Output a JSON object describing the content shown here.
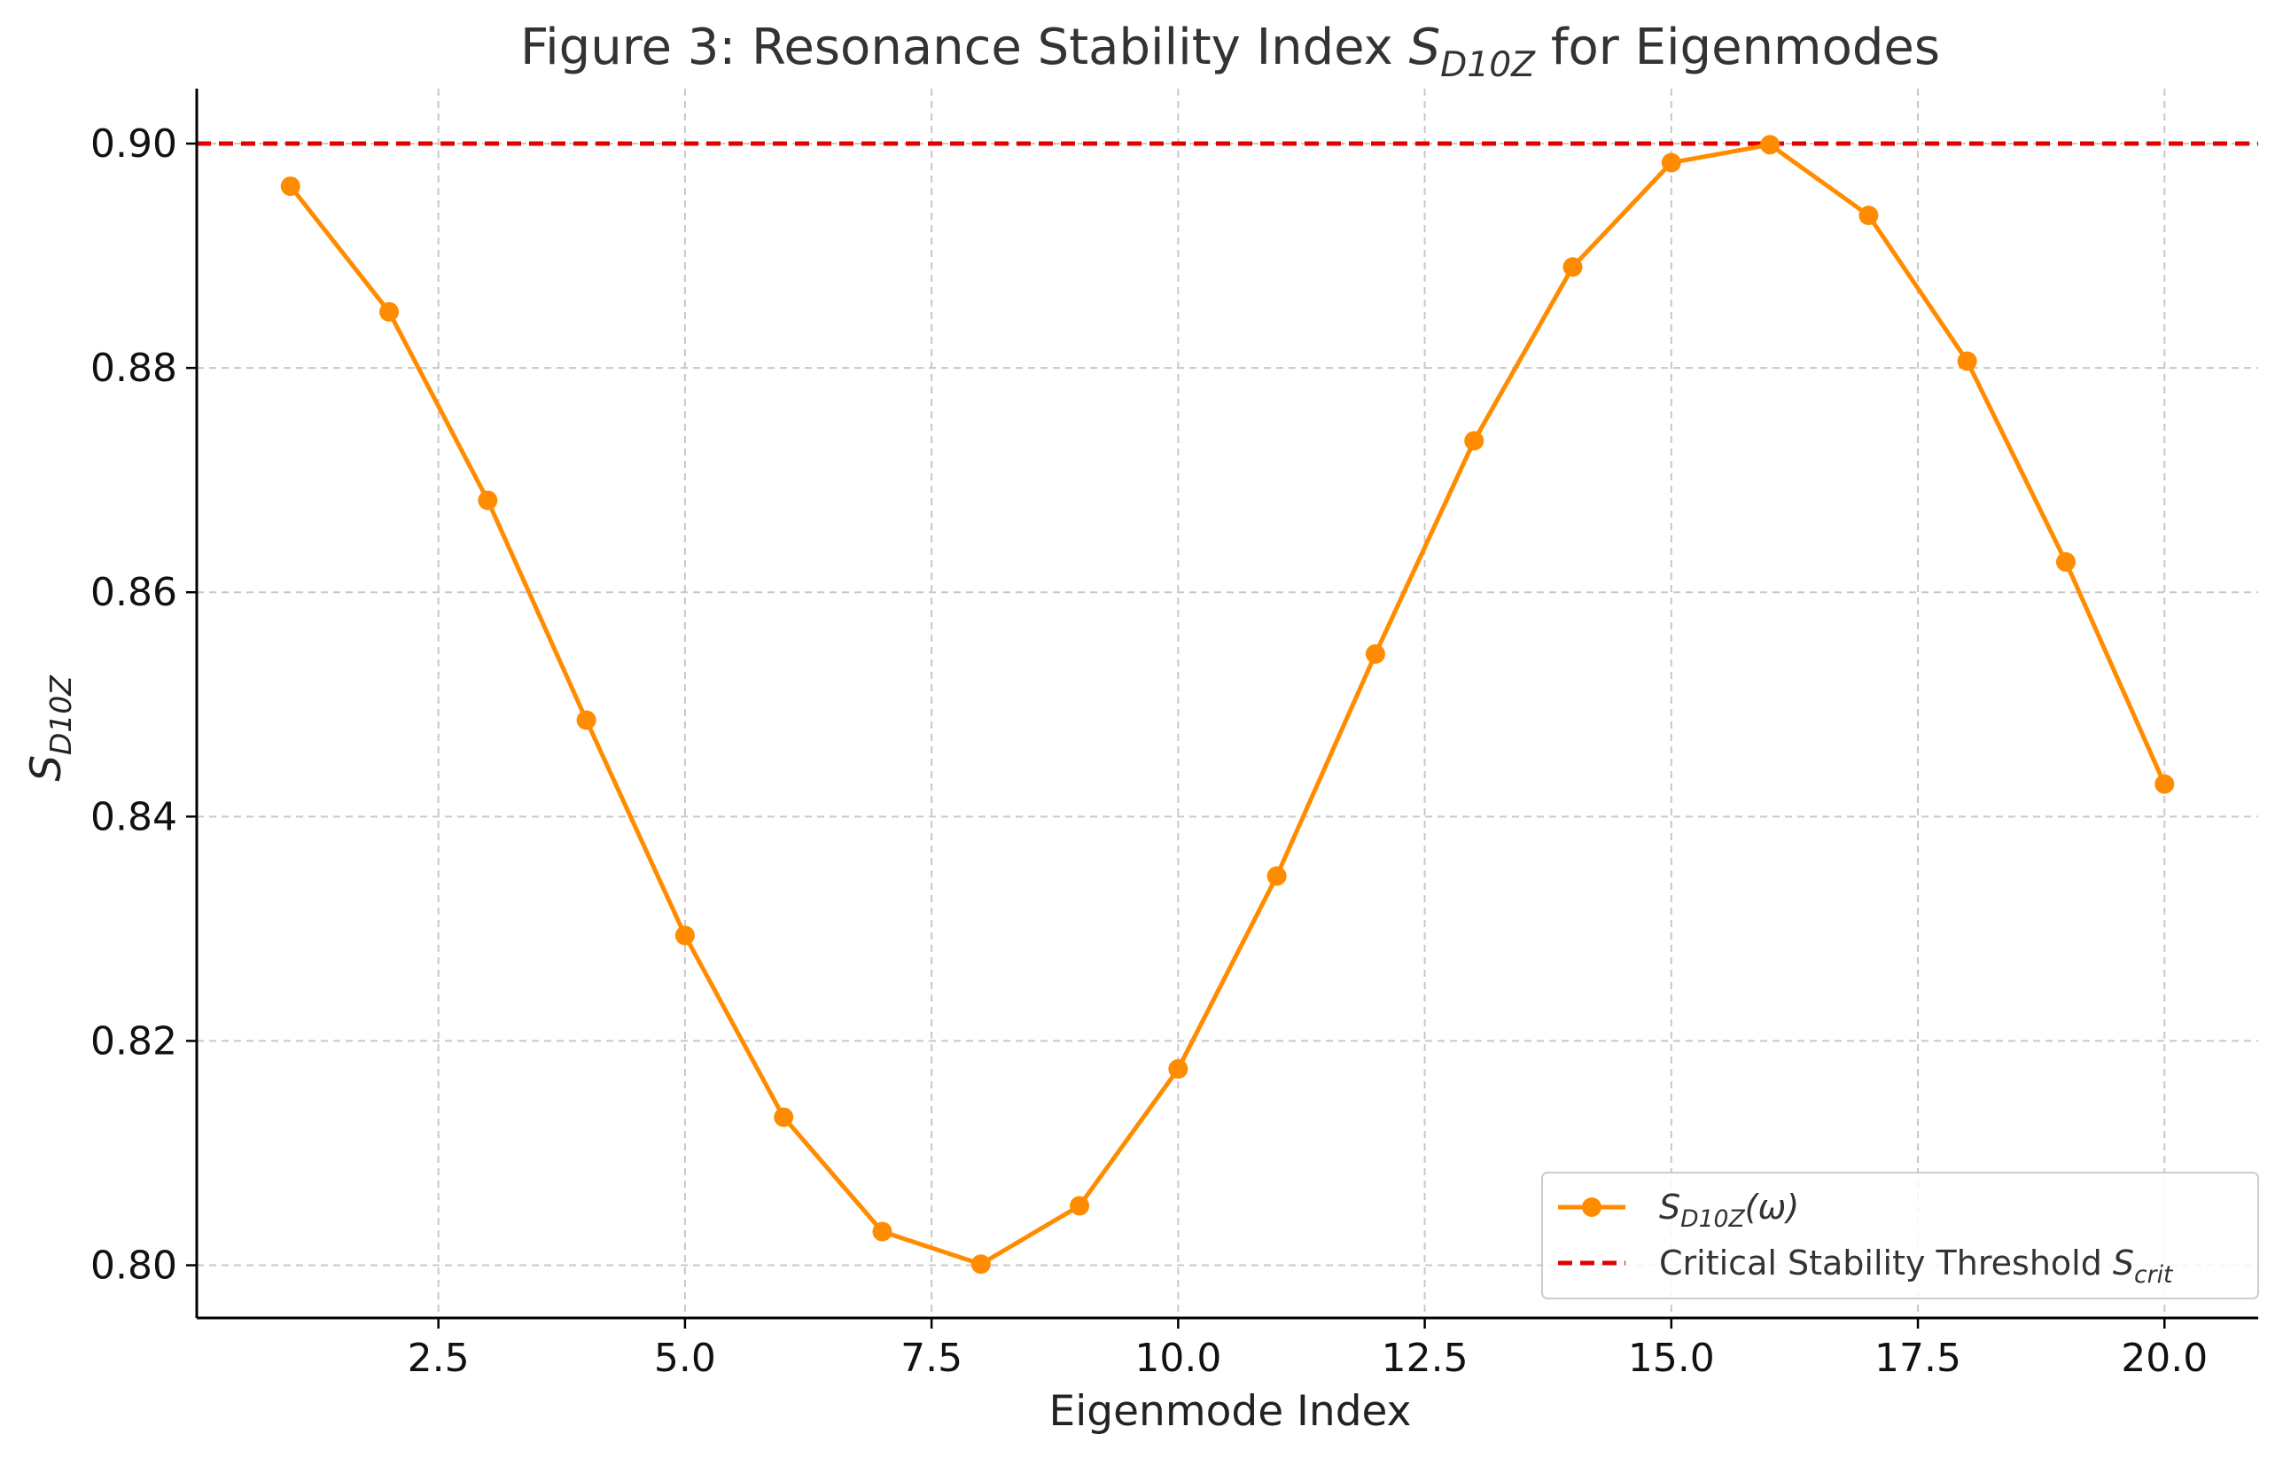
{
  "chart_data": {
    "type": "line",
    "title": {
      "prefix": "Figure 3: Resonance Stability Index ",
      "symbol": "S",
      "subscript": "D10Z",
      "suffix": " for Eigenmodes"
    },
    "xlabel": "Eigenmode Index",
    "ylabel": {
      "symbol": "S",
      "subscript": "D10Z"
    },
    "xlim": [
      0.05,
      20.95
    ],
    "ylim": [
      0.7953,
      0.9049
    ],
    "xticks": [
      2.5,
      5.0,
      7.5,
      10.0,
      12.5,
      15.0,
      17.5,
      20.0
    ],
    "xtick_labels": [
      "2.5",
      "5.0",
      "7.5",
      "10.0",
      "12.5",
      "15.0",
      "17.5",
      "20.0"
    ],
    "yticks": [
      0.8,
      0.82,
      0.84,
      0.86,
      0.88,
      0.9
    ],
    "ytick_labels": [
      "0.80",
      "0.82",
      "0.84",
      "0.86",
      "0.88",
      "0.90"
    ],
    "grid": true,
    "legend_position": "lower-right",
    "series": [
      {
        "name": {
          "symbol": "S",
          "subscript": "D10Z",
          "suffix": "(ω)"
        },
        "color": "#ff8c00",
        "marker": "circle",
        "x": [
          1,
          2,
          3,
          4,
          5,
          6,
          7,
          8,
          9,
          10,
          11,
          12,
          13,
          14,
          15,
          16,
          17,
          18,
          19,
          20
        ],
        "y": [
          0.8962,
          0.885,
          0.8682,
          0.8486,
          0.8294,
          0.8132,
          0.803,
          0.8001,
          0.8053,
          0.8175,
          0.8347,
          0.8545,
          0.8735,
          0.889,
          0.8983,
          0.8999,
          0.8936,
          0.8806,
          0.8627,
          0.8429
        ]
      }
    ],
    "threshold": {
      "name": {
        "prefix": "Critical Stability Threshold ",
        "symbol": "S",
        "subscript": "crit"
      },
      "value": 0.9,
      "color": "#e00000",
      "style": "dashed"
    },
    "grid_color": "#c8c8c8",
    "axis_color": "#000000"
  }
}
